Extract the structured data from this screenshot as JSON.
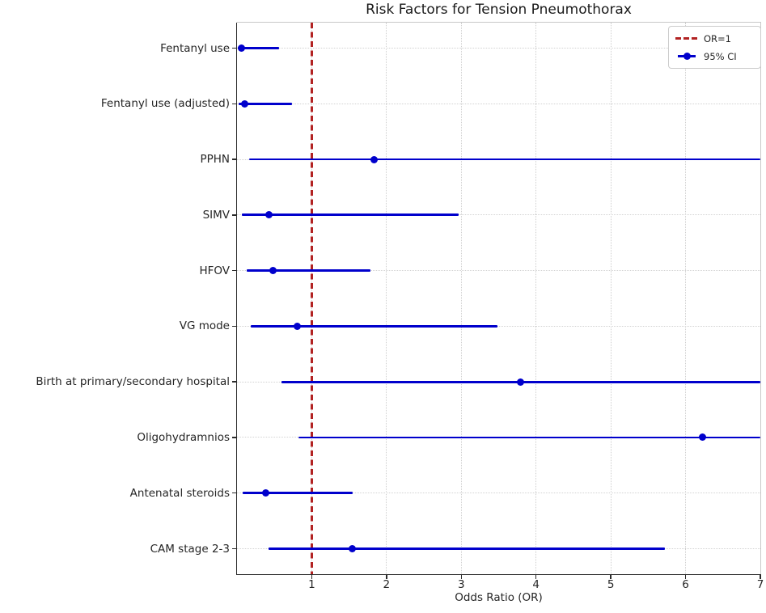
{
  "chart_data": {
    "type": "scatter",
    "subtype": "forest-plot",
    "title": "Risk Factors for Tension Pneumothorax",
    "xlabel": "Odds Ratio (OR)",
    "xlim": [
      0,
      7
    ],
    "x_ticks": [
      1,
      2,
      3,
      4,
      5,
      6,
      7
    ],
    "reference_line_x": 1,
    "grid": "dotted",
    "legend_position": "upper right",
    "legend": [
      {
        "label": "OR=1",
        "style": "red-dashed-line"
      },
      {
        "label": "95% CI",
        "style": "blue-dot-line"
      }
    ],
    "colors": {
      "ci": "#0000cc",
      "marker": "#0000cc",
      "refline": "#b22222",
      "grid": "#d2d2d2",
      "spine": "#2b2b2b"
    },
    "rows": [
      {
        "label": "Fentanyl use",
        "or": 0.06,
        "ci_low": 0.01,
        "ci_high": 0.56,
        "clipped": false
      },
      {
        "label": "Fentanyl use (adjusted)",
        "or": 0.1,
        "ci_low": 0.02,
        "ci_high": 0.74,
        "clipped": false
      },
      {
        "label": "PPHN",
        "or": 1.83,
        "ci_low": 0.16,
        "ci_high": 7.0,
        "clipped": true
      },
      {
        "label": "SIMV",
        "or": 0.43,
        "ci_low": 0.06,
        "ci_high": 2.96,
        "clipped": false
      },
      {
        "label": "HFOV",
        "or": 0.48,
        "ci_low": 0.13,
        "ci_high": 1.79,
        "clipped": false
      },
      {
        "label": "VG mode",
        "or": 0.81,
        "ci_low": 0.18,
        "ci_high": 3.48,
        "clipped": false
      },
      {
        "label": "Birth at primary/secondary hospital",
        "or": 3.79,
        "ci_low": 0.59,
        "ci_high": 7.0,
        "clipped": true
      },
      {
        "label": "Oligohydramnios",
        "or": 6.23,
        "ci_low": 0.82,
        "ci_high": 7.0,
        "clipped": true
      },
      {
        "label": "Antenatal steroids",
        "or": 0.38,
        "ci_low": 0.08,
        "ci_high": 1.55,
        "clipped": false
      },
      {
        "label": "CAM stage 2-3",
        "or": 1.54,
        "ci_low": 0.42,
        "ci_high": 5.72,
        "clipped": false
      }
    ]
  }
}
